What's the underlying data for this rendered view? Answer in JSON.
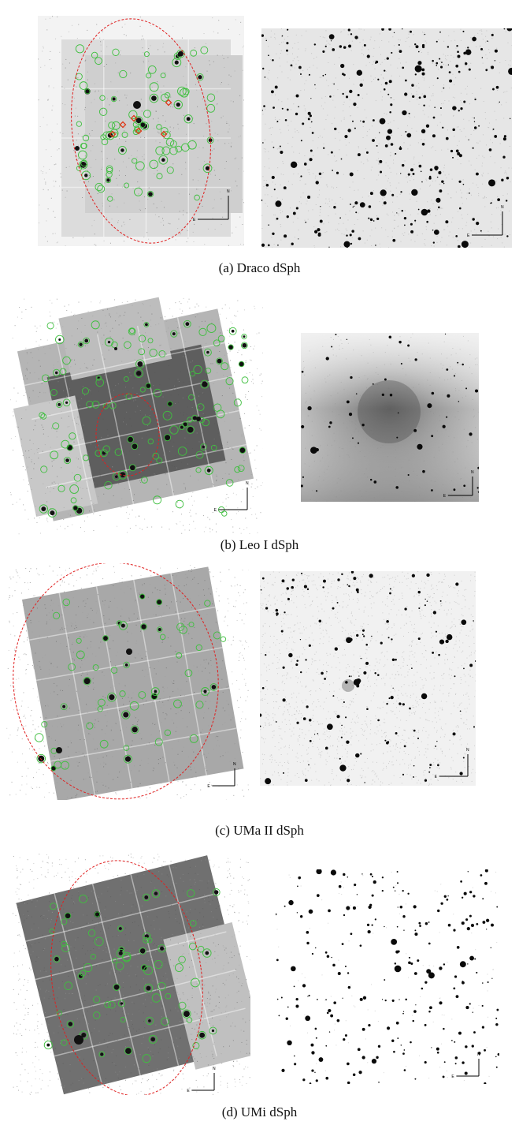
{
  "figure": {
    "panels": [
      {
        "id": "a",
        "caption": "(a)  Draco dSph",
        "xray_image": {
          "description_icon": "xray-mosaic",
          "has_red_ellipse": true,
          "has_red_diamonds": true
        },
        "optical_image": {
          "description_icon": "optical-field",
          "background": "light-gray"
        },
        "compass": {
          "north": "N",
          "east": "E"
        }
      },
      {
        "id": "b",
        "caption": "(b)  Leo I dSph",
        "xray_image": {
          "description_icon": "xray-mosaic",
          "has_red_ellipse": true,
          "has_red_diamonds": false
        },
        "optical_image": {
          "description_icon": "optical-field",
          "background": "gradient"
        },
        "compass": {
          "north": "N",
          "east": "E"
        }
      },
      {
        "id": "c",
        "caption": "(c)  UMa II dSph",
        "xray_image": {
          "description_icon": "xray-mosaic",
          "has_red_ellipse": true,
          "has_red_diamonds": false
        },
        "optical_image": {
          "description_icon": "optical-field",
          "background": "light-gray"
        },
        "compass": {
          "north": "N",
          "east": "E"
        }
      },
      {
        "id": "d",
        "caption": "(d)  UMi dSph",
        "xray_image": {
          "description_icon": "xray-mosaic",
          "has_red_ellipse": true,
          "has_red_diamonds": false
        },
        "optical_image": {
          "description_icon": "optical-field",
          "background": "white"
        },
        "compass": {
          "north": "N",
          "east": "E"
        }
      }
    ],
    "colors": {
      "source_circle": "#3fbf3f",
      "ellipse": "#e02020",
      "diamond": "#e03010"
    }
  }
}
